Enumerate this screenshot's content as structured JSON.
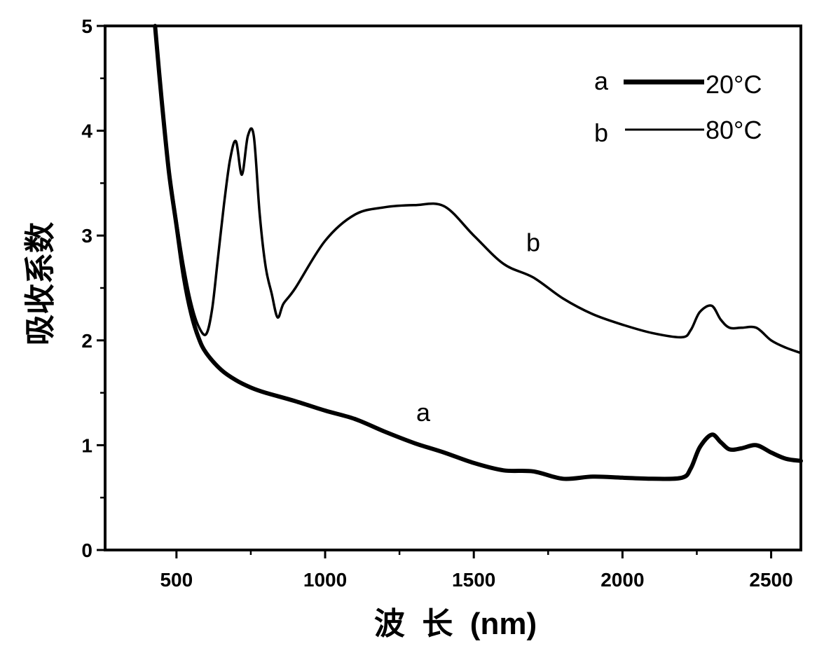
{
  "chart_data": {
    "type": "line",
    "title": "",
    "xlabel": "波  长  (nm)",
    "ylabel": "吸收系数",
    "xlim": [
      260,
      2600
    ],
    "ylim": [
      0,
      5
    ],
    "xticks": [
      500,
      1000,
      1500,
      2000,
      2500
    ],
    "yticks": [
      0,
      1,
      2,
      3,
      4,
      5
    ],
    "grid": false,
    "legend_position": "top-right",
    "legend": [
      {
        "key": "a",
        "label": "20°C"
      },
      {
        "key": "b",
        "label": "80°C"
      }
    ],
    "series": [
      {
        "name": "a",
        "label": "a",
        "label_at": [
          1330,
          1.23
        ],
        "stroke_width": 6,
        "x": [
          428,
          450,
          475,
          500,
          525,
          550,
          575,
          600,
          650,
          700,
          750,
          800,
          900,
          1000,
          1100,
          1200,
          1300,
          1400,
          1500,
          1600,
          1700,
          1800,
          1900,
          2000,
          2100,
          2200,
          2230,
          2260,
          2300,
          2330,
          2360,
          2400,
          2450,
          2500,
          2550,
          2600
        ],
        "y": [
          5.0,
          4.3,
          3.6,
          3.1,
          2.6,
          2.25,
          2.02,
          1.88,
          1.72,
          1.62,
          1.55,
          1.5,
          1.42,
          1.33,
          1.25,
          1.13,
          1.02,
          0.93,
          0.83,
          0.76,
          0.75,
          0.68,
          0.7,
          0.69,
          0.68,
          0.69,
          0.78,
          0.98,
          1.1,
          1.03,
          0.96,
          0.97,
          1.0,
          0.93,
          0.87,
          0.85
        ]
      },
      {
        "name": "b",
        "label": "b",
        "label_at": [
          1700,
          2.85
        ],
        "stroke_width": 3.5,
        "x": [
          428,
          450,
          475,
          500,
          525,
          550,
          575,
          600,
          620,
          640,
          660,
          680,
          700,
          720,
          740,
          760,
          780,
          800,
          820,
          840,
          860,
          900,
          1000,
          1100,
          1200,
          1300,
          1400,
          1500,
          1600,
          1700,
          1800,
          1900,
          2000,
          2100,
          2200,
          2230,
          2260,
          2300,
          2330,
          2360,
          2400,
          2450,
          2500,
          2550,
          2600
        ],
        "y": [
          5.0,
          4.35,
          3.65,
          3.15,
          2.7,
          2.35,
          2.13,
          2.06,
          2.3,
          2.8,
          3.3,
          3.72,
          3.9,
          3.58,
          3.95,
          3.95,
          3.2,
          2.7,
          2.45,
          2.22,
          2.35,
          2.5,
          2.95,
          3.2,
          3.27,
          3.29,
          3.28,
          3.0,
          2.73,
          2.6,
          2.4,
          2.25,
          2.15,
          2.07,
          2.03,
          2.1,
          2.27,
          2.33,
          2.2,
          2.12,
          2.12,
          2.12,
          2.0,
          1.93,
          1.88
        ]
      }
    ]
  }
}
